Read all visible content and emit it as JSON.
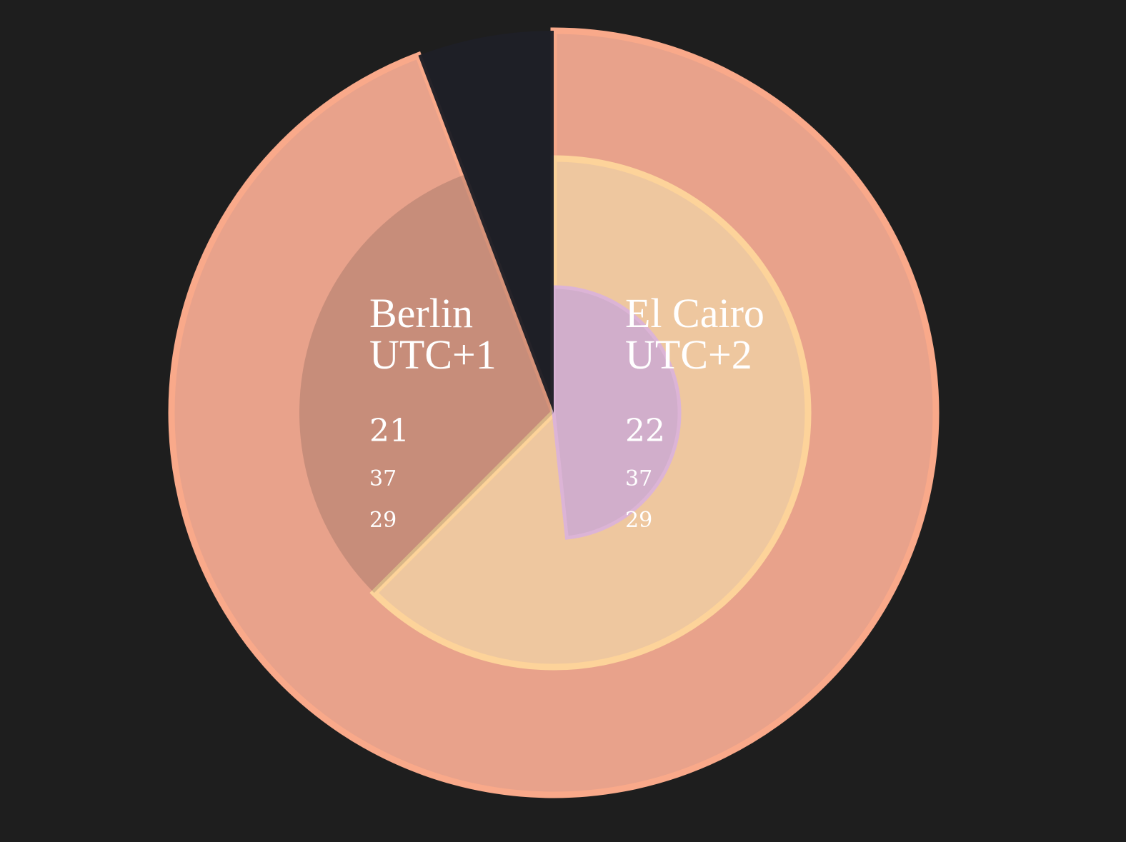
{
  "clocks": [
    {
      "city": "Berlin",
      "timezone": "UTC+1",
      "hours": "21",
      "minutes": "37",
      "seconds": "29"
    },
    {
      "city": "El Cairo",
      "timezone": "UTC+2",
      "hours": "22",
      "minutes": "37",
      "seconds": "29"
    }
  ],
  "colors": {
    "background": "#1e1e1e",
    "outer_ring": "#e8a28b",
    "outer_ring_edge": "#f9a98a",
    "middle_ring": "#eec79f",
    "middle_ring_edge": "#fdd39a",
    "inner_disc": "#d1aecb",
    "inner_disc_edge": "#dcb4d6",
    "night_wedge": "#1e1f26"
  }
}
